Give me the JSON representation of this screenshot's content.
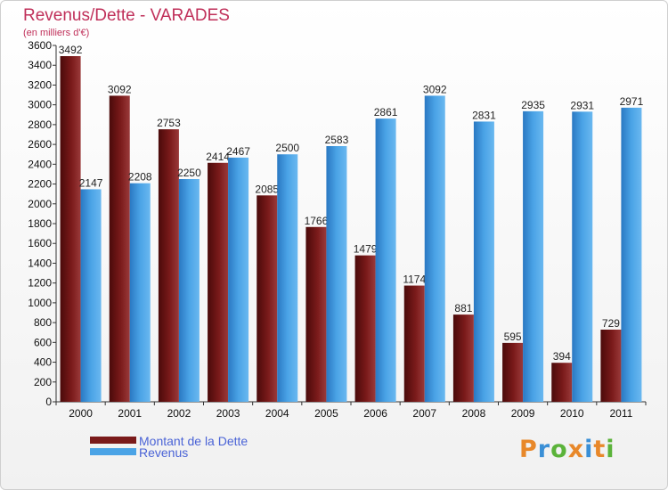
{
  "chart_data": {
    "type": "bar",
    "title": "Revenus/Dette - VARADES",
    "subtitle": "(en milliers d'€)",
    "categories": [
      "2000",
      "2001",
      "2002",
      "2003",
      "2004",
      "2005",
      "2006",
      "2007",
      "2008",
      "2009",
      "2010",
      "2011"
    ],
    "series": [
      {
        "name": "Montant de la Dette",
        "color": "#7a1a1a",
        "values": [
          3492,
          3092,
          2753,
          2414,
          2085,
          1766,
          1479,
          1174,
          881,
          595,
          394,
          729
        ]
      },
      {
        "name": "Revenus",
        "color": "#4aa3e6",
        "values": [
          2147,
          2208,
          2250,
          2467,
          2500,
          2583,
          2861,
          3092,
          2831,
          2935,
          2931,
          2971
        ]
      }
    ],
    "ylim": [
      0,
      3600
    ],
    "yticks": [
      0,
      200,
      400,
      600,
      800,
      1000,
      1200,
      1400,
      1600,
      1800,
      2000,
      2200,
      2400,
      2600,
      2800,
      3000,
      3200,
      3400,
      3600
    ],
    "grid": false,
    "legend": "bottom-left"
  },
  "brand": {
    "logo_letters": [
      "P",
      "r",
      "o",
      "x",
      "i",
      "t",
      "i"
    ],
    "logo_colors": [
      "#e8882a",
      "#3a8fd6",
      "#5bb33a",
      "#e8882a",
      "#3a8fd6",
      "#e8882a",
      "#5bb33a"
    ]
  }
}
